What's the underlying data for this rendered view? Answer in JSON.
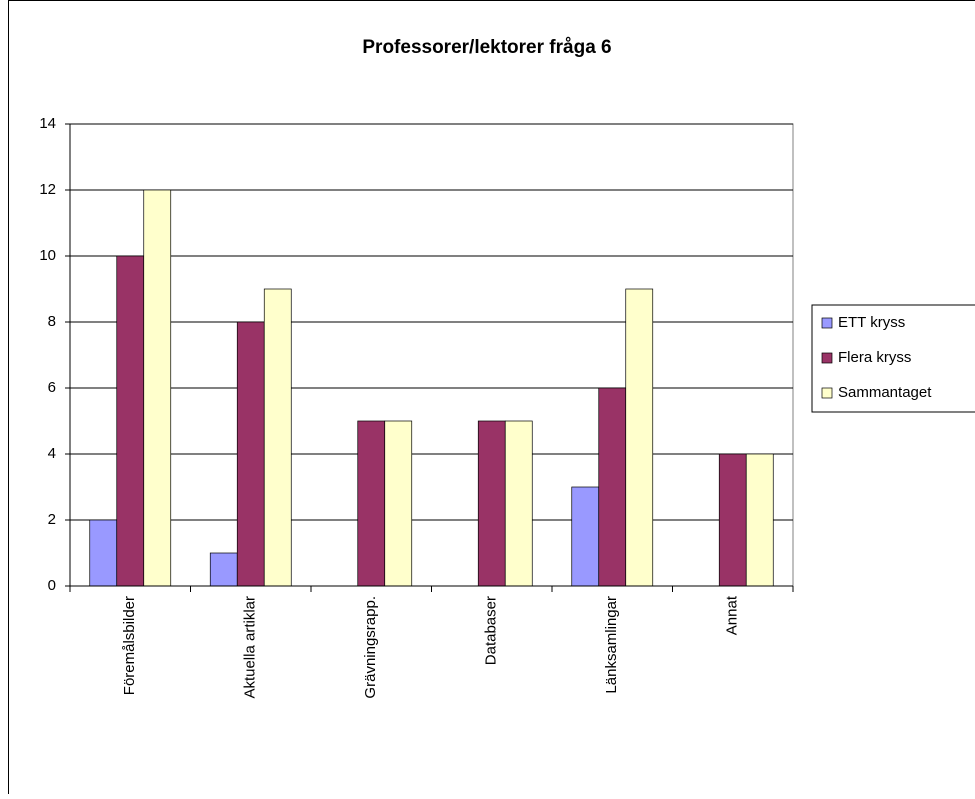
{
  "chart_data": {
    "type": "bar",
    "title": "Professorer/lektorer fråga 6",
    "categories": [
      "Föremålsbilder",
      "Aktuella artiklar",
      "Grävningsrapp.",
      "Databaser",
      "Länksamlingar",
      "Annat"
    ],
    "series": [
      {
        "name": "ETT kryss",
        "color": "#9999ff",
        "values": [
          2,
          1,
          0,
          0,
          3,
          0
        ]
      },
      {
        "name": "Flera kryss",
        "color": "#993366",
        "values": [
          10,
          8,
          5,
          5,
          6,
          4
        ]
      },
      {
        "name": "Sammantaget",
        "color": "#ffffcc",
        "values": [
          12,
          9,
          5,
          5,
          9,
          4
        ]
      }
    ],
    "ylim": [
      0,
      14
    ],
    "yticks": [
      0,
      2,
      4,
      6,
      8,
      10,
      12,
      14
    ],
    "grid": true,
    "legend": "right"
  }
}
